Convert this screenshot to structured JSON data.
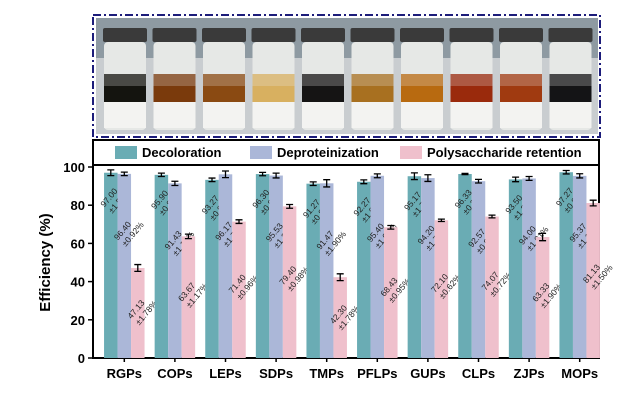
{
  "chart_data": {
    "type": "bar",
    "categories": [
      "RGPs",
      "COPs",
      "LEPs",
      "SDPs",
      "TMPs",
      "PFLPs",
      "GUPs",
      "CLPs",
      "ZJPs",
      "MOPs"
    ],
    "ylabel": "Efficiency (%)",
    "xlabel": "",
    "ylim": [
      0,
      100
    ],
    "yticks": [
      0,
      20,
      40,
      60,
      80,
      100
    ],
    "legend_position": "top",
    "grid": false,
    "series": [
      {
        "name": "Decoloration",
        "color": "#6aacb4",
        "values": [
          97.0,
          95.9,
          93.27,
          96.3,
          91.27,
          92.27,
          95.17,
          96.33,
          93.5,
          97.27
        ],
        "errors": [
          1.51,
          0.89,
          0.93,
          0.9,
          0.96,
          1.0,
          1.75,
          0.32,
          1.2,
          0.9
        ],
        "labels": [
          [
            "97.00",
            "±1.51%"
          ],
          [
            "95.90",
            "±0.89%"
          ],
          [
            "93.27",
            "±0.93%"
          ],
          [
            "96.30",
            "±0.90%"
          ],
          [
            "91.27",
            "±0.96%"
          ],
          [
            "92.27",
            "±1.00%"
          ],
          [
            "95.17",
            "±1.75%"
          ],
          [
            "96.33",
            "±0.32%"
          ],
          [
            "93.50",
            "±1.20%"
          ],
          [
            "97.27",
            "±0.90%"
          ]
        ]
      },
      {
        "name": "Deproteinization",
        "color": "#abb7d8",
        "values": [
          96.4,
          91.43,
          96.17,
          95.53,
          91.47,
          95.4,
          94.2,
          92.57,
          94.0,
          95.37
        ],
        "errors": [
          0.92,
          1.1,
          1.74,
          1.25,
          1.9,
          1.01,
          1.75,
          0.95,
          1.01,
          1.1
        ],
        "labels": [
          [
            "96.40",
            "±0.92%"
          ],
          [
            "91.43",
            "±1.10%"
          ],
          [
            "96.17",
            "±1.74%"
          ],
          [
            "95.53",
            "±1.25%"
          ],
          [
            "91.47",
            "±1.90%"
          ],
          [
            "95.40",
            "±1.01%"
          ],
          [
            "94.20",
            "±1.75%"
          ],
          [
            "92.57",
            "±0.95%"
          ],
          [
            "94.00",
            "±1.01%"
          ],
          [
            "95.37",
            "±1.10%"
          ]
        ]
      },
      {
        "name": "Polysaccharide retention",
        "color": "#efc0cc",
        "values": [
          47.13,
          63.67,
          71.4,
          79.4,
          42.3,
          68.43,
          72.1,
          74.07,
          63.33,
          81.13
        ],
        "errors": [
          1.78,
          1.17,
          0.96,
          0.98,
          1.78,
          0.95,
          0.62,
          0.72,
          1.9,
          1.5
        ],
        "labels": [
          [
            "47.13",
            "±1.78%"
          ],
          [
            "63.67",
            "±1.17%"
          ],
          [
            "71.40",
            "±0.96%"
          ],
          [
            "79.40",
            "±0.98%"
          ],
          [
            "42.30",
            "±1.78%"
          ],
          [
            "68.43",
            "±0.95%"
          ],
          [
            "72.10",
            "±0.62%"
          ],
          [
            "74.07",
            "±0.72%"
          ],
          [
            "63.33",
            "±1.90%"
          ],
          [
            "81.13",
            "±1.50%"
          ]
        ]
      }
    ]
  },
  "photo": {
    "frame_color": "#1c1c7a",
    "vial_band_colors": [
      "#14140f",
      "#7a3a0c",
      "#8a4a12",
      "#d8b060",
      "#151414",
      "#a87020",
      "#b86a10",
      "#9a2a0c",
      "#a03a10",
      "#141416"
    ]
  }
}
